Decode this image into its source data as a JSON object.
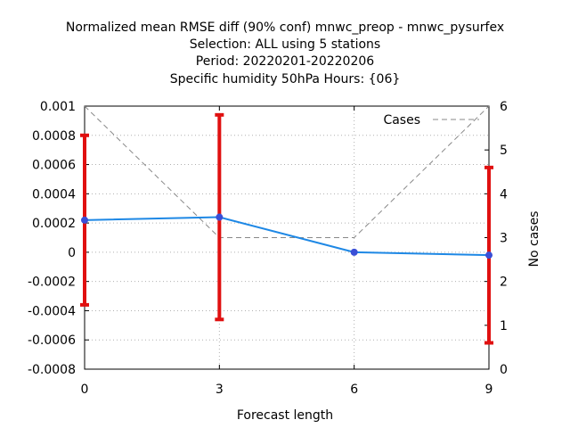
{
  "chart_data": {
    "type": "line",
    "title_lines": [
      "Normalized mean RMSE diff (90% conf) mnwc_preop - mnwc_pysurfex",
      "Selection: ALL using      5 stations",
      "Period: 20220201-20220206",
      "Specific humidity 50hPa   Hours: {06}"
    ],
    "xlabel": "Forecast length",
    "ylabel": "",
    "y2label": "No cases",
    "x": [
      0,
      3,
      6,
      9
    ],
    "xlim": [
      0,
      9
    ],
    "xticks": [
      0,
      3,
      6,
      9
    ],
    "ylim": [
      -0.0008,
      0.001
    ],
    "yticks": [
      -0.0008,
      -0.0006,
      -0.0004,
      -0.0002,
      0,
      0.0002,
      0.0004,
      0.0006,
      0.0008,
      0.001
    ],
    "ytick_labels": [
      "-0.0008",
      "-0.0006",
      "-0.0004",
      "-0.0002",
      "0",
      "0.0002",
      "0.0004",
      "0.0006",
      "0.0008",
      "0.001"
    ],
    "y2lim": [
      0,
      6
    ],
    "y2ticks": [
      0,
      1,
      2,
      3,
      4,
      5,
      6
    ],
    "grid": true,
    "legend_position": "top-right",
    "series": [
      {
        "role": "mean_diff",
        "values": [
          0.00022,
          0.00024,
          0.0,
          -2e-05
        ],
        "color": "#1e88e5",
        "marker_color": "#3a4fd6"
      },
      {
        "role": "confidence_interval_90",
        "lower": [
          -0.00036,
          -0.00046,
          0.0,
          -0.00062
        ],
        "upper": [
          0.0008,
          0.00094,
          0.0,
          0.00058
        ],
        "color": "#e01010"
      },
      {
        "name": "Cases",
        "axis": "y2",
        "values": [
          6,
          3,
          3,
          6
        ],
        "color": "#888888",
        "dashed": true
      }
    ]
  }
}
